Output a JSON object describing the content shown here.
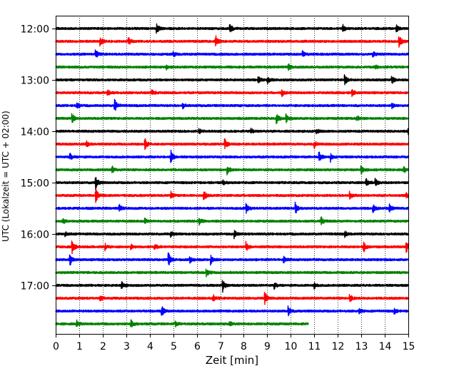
{
  "chart_data": {
    "type": "line",
    "chart_kind": "helicorder",
    "title": "",
    "xlabel": "Zeit  [min]",
    "ylabel": "UTC (Lokalzeit = UTC + 02:00)",
    "xlim": [
      0,
      15
    ],
    "x_ticks": [
      "0",
      "1",
      "2",
      "3",
      "4",
      "5",
      "6",
      "7",
      "8",
      "9",
      "10",
      "11",
      "12",
      "13",
      "14",
      "15"
    ],
    "y_tick_labels": [
      {
        "label": "12:00",
        "trace": 0
      },
      {
        "label": "13:00",
        "trace": 4
      },
      {
        "label": "14:00",
        "trace": 8
      },
      {
        "label": "15:00",
        "trace": 12
      },
      {
        "label": "16:00",
        "trace": 16
      },
      {
        "label": "17:00",
        "trace": 20
      }
    ],
    "grid": "vertical-dotted",
    "trace_colors": [
      "#000000",
      "#ff0000",
      "#0000ff",
      "#008000"
    ],
    "trace_count": 24,
    "last_trace_end_min": 10.75,
    "events": [
      [
        [
          4.3,
          0.7
        ],
        [
          7.4,
          1.0
        ],
        [
          12.2,
          0.6
        ],
        [
          14.5,
          0.5
        ]
      ],
      [
        [
          1.9,
          0.6
        ],
        [
          3.1,
          0.5
        ],
        [
          6.8,
          0.8
        ],
        [
          14.6,
          1.0
        ]
      ],
      [
        [
          1.7,
          0.6
        ],
        [
          5.0,
          0.4
        ],
        [
          10.5,
          0.5
        ],
        [
          13.5,
          0.4
        ]
      ],
      [
        [
          4.7,
          0.3
        ],
        [
          9.9,
          0.4
        ],
        [
          13.6,
          0.4
        ]
      ],
      [
        [
          8.6,
          0.6
        ],
        [
          9.0,
          0.5
        ],
        [
          12.3,
          0.6
        ],
        [
          14.3,
          0.5
        ]
      ],
      [
        [
          2.2,
          0.5
        ],
        [
          4.1,
          0.4
        ],
        [
          9.6,
          0.6
        ],
        [
          12.6,
          0.5
        ]
      ],
      [
        [
          0.9,
          0.5
        ],
        [
          2.5,
          1.0
        ],
        [
          5.4,
          0.4
        ],
        [
          14.3,
          0.4
        ]
      ],
      [
        [
          0.7,
          0.6
        ],
        [
          9.4,
          0.7
        ],
        [
          9.8,
          0.6
        ],
        [
          12.8,
          0.4
        ]
      ],
      [
        [
          6.1,
          0.4
        ],
        [
          8.3,
          0.4
        ],
        [
          11.1,
          0.4
        ],
        [
          15.0,
          0.4
        ]
      ],
      [
        [
          1.3,
          0.5
        ],
        [
          3.8,
          0.7
        ],
        [
          7.2,
          0.7
        ],
        [
          11.0,
          0.5
        ]
      ],
      [
        [
          0.6,
          0.5
        ],
        [
          4.9,
          0.9
        ],
        [
          11.2,
          0.9
        ],
        [
          11.7,
          0.6
        ]
      ],
      [
        [
          2.4,
          0.5
        ],
        [
          7.3,
          0.7
        ],
        [
          13.0,
          0.5
        ],
        [
          14.8,
          0.5
        ]
      ],
      [
        [
          1.7,
          1.0
        ],
        [
          7.1,
          0.3
        ],
        [
          13.2,
          0.6
        ],
        [
          13.6,
          0.5
        ]
      ],
      [
        [
          1.7,
          1.0
        ],
        [
          4.9,
          0.5
        ],
        [
          6.3,
          0.7
        ],
        [
          12.5,
          0.5
        ],
        [
          14.9,
          0.5
        ]
      ],
      [
        [
          2.7,
          0.5
        ],
        [
          8.1,
          0.6
        ],
        [
          10.2,
          0.8
        ],
        [
          13.5,
          0.6
        ],
        [
          14.2,
          0.5
        ]
      ],
      [
        [
          0.3,
          0.4
        ],
        [
          3.8,
          0.3
        ],
        [
          6.1,
          0.6
        ],
        [
          11.3,
          0.5
        ]
      ],
      [
        [
          0.4,
          0.4
        ],
        [
          4.9,
          0.4
        ],
        [
          7.6,
          0.6
        ],
        [
          12.3,
          0.4
        ]
      ],
      [
        [
          0.7,
          1.0
        ],
        [
          2.1,
          0.4
        ],
        [
          3.2,
          0.5
        ],
        [
          4.2,
          0.5
        ],
        [
          8.1,
          0.7
        ],
        [
          13.1,
          0.7
        ],
        [
          14.9,
          1.0
        ]
      ],
      [
        [
          0.6,
          0.9
        ],
        [
          4.8,
          0.9
        ],
        [
          5.7,
          0.4
        ],
        [
          6.6,
          0.6
        ],
        [
          9.7,
          0.4
        ]
      ],
      [
        [
          6.4,
          0.6
        ]
      ],
      [
        [
          2.8,
          0.5
        ],
        [
          7.1,
          0.9
        ],
        [
          9.3,
          0.4
        ],
        [
          11.0,
          0.4
        ]
      ],
      [
        [
          1.9,
          0.4
        ],
        [
          6.7,
          0.5
        ],
        [
          8.9,
          0.9
        ],
        [
          12.5,
          0.6
        ]
      ],
      [
        [
          4.5,
          0.8
        ],
        [
          9.9,
          0.7
        ],
        [
          12.9,
          0.4
        ],
        [
          14.4,
          0.4
        ]
      ],
      [
        [
          0.9,
          0.4
        ],
        [
          3.2,
          0.5
        ],
        [
          5.1,
          0.3
        ],
        [
          7.4,
          0.3
        ]
      ]
    ]
  }
}
